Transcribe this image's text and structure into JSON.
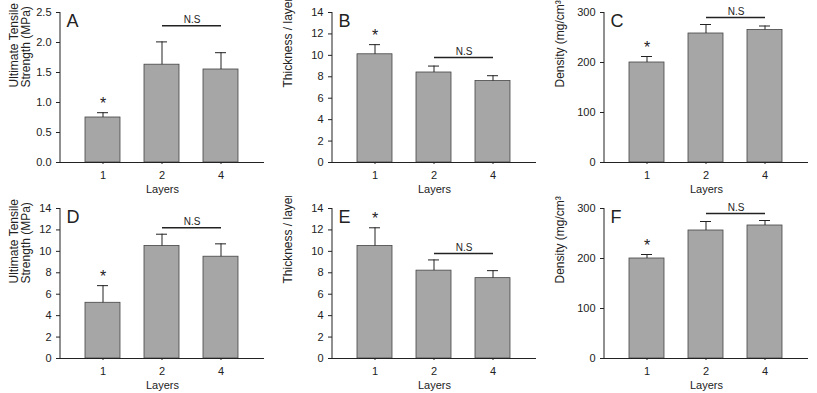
{
  "chart_data": [
    {
      "type": "bar",
      "title": "A",
      "x_label": "Layers",
      "y_label": "Ultimate Tensile\nStrength (MPa)",
      "categories": [
        "1",
        "2",
        "4"
      ],
      "values": [
        0.75,
        1.63,
        1.55
      ],
      "errors": [
        0.08,
        0.38,
        0.28
      ],
      "color": "#a6a6a6",
      "ylim": [
        0,
        2.5
      ],
      "yticks": [
        {
          "value": 0,
          "label": "0.0"
        },
        0.5,
        {
          "value": 1,
          "label": "1.0"
        },
        1.5,
        {
          "value": 2,
          "label": "2.0"
        },
        2.5
      ],
      "grid": false,
      "annotations": [
        {
          "text": "*",
          "categories": [
            "1"
          ]
        },
        {
          "text": "N.S",
          "categories": [
            "2",
            "4"
          ],
          "y": 2.28
        }
      ]
    },
    {
      "type": "bar",
      "title": "B",
      "x_label": "Layers",
      "y_label": "Thickness / layer (µm)",
      "categories": [
        "1",
        "2",
        "4"
      ],
      "values": [
        10.1,
        8.4,
        7.6
      ],
      "errors": [
        0.9,
        0.6,
        0.5
      ],
      "color": "#a6a6a6",
      "ylim": [
        0,
        14
      ],
      "yticks": [
        0,
        2,
        4,
        6,
        8,
        10,
        12,
        14
      ],
      "grid": false,
      "annotations": [
        {
          "text": "*",
          "categories": [
            "1"
          ]
        },
        {
          "text": "N.S",
          "categories": [
            "2",
            "4"
          ],
          "y": 9.8
        }
      ]
    },
    {
      "type": "bar",
      "title": "C",
      "x_label": "Layers",
      "y_label": "Density (mg/cm³)",
      "categories": [
        "1",
        "2",
        "4"
      ],
      "values": [
        200,
        258,
        265
      ],
      "errors": [
        12,
        18,
        8
      ],
      "color": "#a6a6a6",
      "ylim": [
        0,
        300
      ],
      "yticks": [
        0,
        100,
        200,
        300
      ],
      "grid": false,
      "annotations": [
        {
          "text": "*",
          "categories": [
            "1"
          ]
        },
        {
          "text": "N.S",
          "categories": [
            "2",
            "4"
          ],
          "y": 290
        }
      ]
    },
    {
      "type": "bar",
      "title": "D",
      "x_label": "Layers",
      "y_label": "Ultimate Tensile\nStrength (MPa)",
      "categories": [
        "1",
        "2",
        "4"
      ],
      "values": [
        5.2,
        10.5,
        9.5
      ],
      "errors": [
        1.6,
        1.1,
        1.2
      ],
      "color": "#a6a6a6",
      "ylim": [
        0,
        14
      ],
      "yticks": [
        0,
        2,
        4,
        6,
        8,
        10,
        12,
        14
      ],
      "grid": false,
      "annotations": [
        {
          "text": "*",
          "categories": [
            "1"
          ]
        },
        {
          "text": "N.S",
          "categories": [
            "2",
            "4"
          ],
          "y": 12.2
        }
      ]
    },
    {
      "type": "bar",
      "title": "E",
      "x_label": "Layers",
      "y_label": "Thickness / layer (µm)",
      "categories": [
        "1",
        "2",
        "4"
      ],
      "values": [
        10.5,
        8.2,
        7.5
      ],
      "errors": [
        1.7,
        1.0,
        0.7
      ],
      "color": "#a6a6a6",
      "ylim": [
        0,
        14
      ],
      "yticks": [
        0,
        2,
        4,
        6,
        8,
        10,
        12,
        14
      ],
      "grid": false,
      "annotations": [
        {
          "text": "*",
          "categories": [
            "1"
          ]
        },
        {
          "text": "N.S",
          "categories": [
            "2",
            "4"
          ],
          "y": 9.8
        }
      ]
    },
    {
      "type": "bar",
      "title": "F",
      "x_label": "Layers",
      "y_label": "Density (mg/cm³)",
      "categories": [
        "1",
        "2",
        "4"
      ],
      "values": [
        200,
        256,
        266
      ],
      "errors": [
        8,
        18,
        10
      ],
      "color": "#a6a6a6",
      "ylim": [
        0,
        300
      ],
      "yticks": [
        0,
        100,
        200,
        300
      ],
      "grid": false,
      "annotations": [
        {
          "text": "*",
          "categories": [
            "1"
          ]
        },
        {
          "text": "N.S",
          "categories": [
            "2",
            "4"
          ],
          "y": 290
        }
      ]
    }
  ]
}
